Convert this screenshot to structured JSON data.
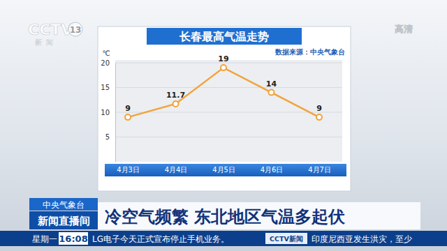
{
  "chart_data": {
    "type": "line",
    "title": "长春最高气温走势",
    "subtitle": "数据来源：中央气象台",
    "y_label": "℃",
    "categories": [
      "4月3日",
      "4月4日",
      "4月5日",
      "4月6日",
      "4月7日"
    ],
    "values": [
      9,
      11.7,
      19,
      14,
      9
    ],
    "color": "#f2a33a",
    "marker": "circle",
    "ylim": [
      0,
      20
    ],
    "yticks": [
      5,
      10,
      15,
      20
    ],
    "grid": true,
    "data_labels": true,
    "annotations": [
      "CCTV",
      "13",
      "新闻",
      "高清",
      "中央气象台",
      "新闻直播间",
      "冷空气频繁 东北地区气温多起伏",
      "星期一",
      "16:08",
      "LG电子今天正式宣布停止手机业务。",
      "CCTV新闻",
      "印度尼西亚发生洪灾，至少"
    ]
  }
}
